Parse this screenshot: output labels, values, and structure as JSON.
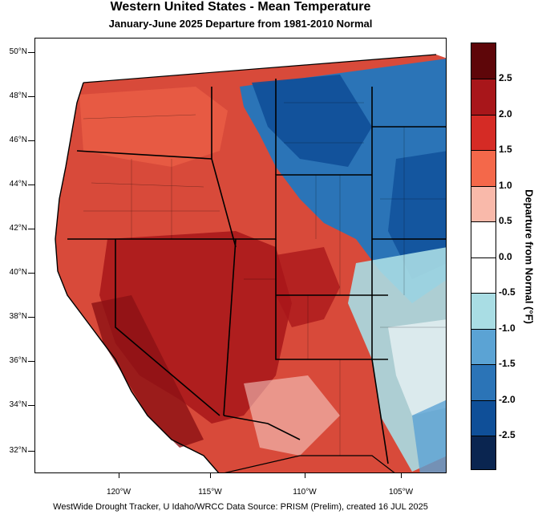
{
  "title": "Western United States - Mean Temperature",
  "subtitle": "January-June 2025  Departure from 1981-2010 Normal",
  "footer": "WestWide Drought Tracker, U Idaho/WRCC Data Source: PRISM (Prelim), created 16 JUL 2025",
  "map": {
    "lat_labels": [
      "50°N",
      "48°N",
      "46°N",
      "44°N",
      "42°N",
      "40°N",
      "38°N",
      "36°N",
      "34°N",
      "32°N"
    ],
    "lon_labels": [
      "120°W",
      "115°W",
      "110°W",
      "105°W"
    ]
  },
  "colorbar": {
    "title": "Departure from Normal (°F)",
    "tick_labels": [
      "2.5",
      "2.0",
      "1.5",
      "1.0",
      "0.5",
      "0.0",
      "-0.5",
      "-1.0",
      "-1.5",
      "-2.0",
      "-2.5"
    ],
    "colors": [
      "#5e0609",
      "#a8161a",
      "#d52b25",
      "#f4684a",
      "#f9b9aa",
      "#ffffff",
      "#ffffff",
      "#a9dde4",
      "#5ba3d4",
      "#2b74b7",
      "#0f4f98",
      "#0a2550"
    ]
  },
  "legend_palette": {
    "warm_strong": "#a8161a",
    "warm": "#d52b25",
    "cool": "#2b74b7",
    "cool_strong": "#0f4f98"
  }
}
